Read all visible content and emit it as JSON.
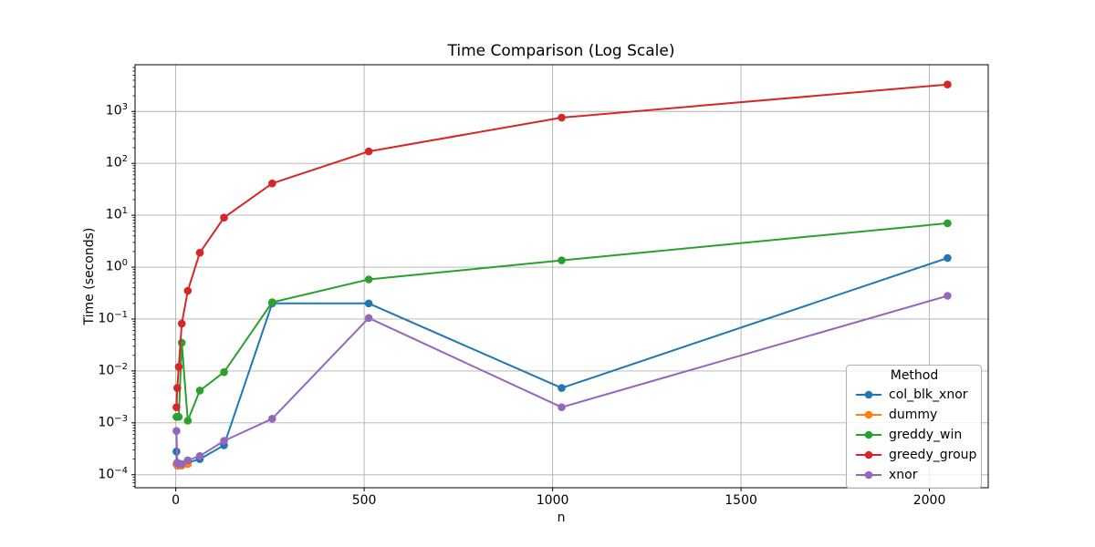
{
  "chart_data": {
    "type": "line",
    "title": "Time Comparison (Log Scale)",
    "xlabel": "n",
    "ylabel": "Time (seconds)",
    "grid": true,
    "xlim": [
      -108,
      2156
    ],
    "ylim_exponents": [
      -4.25,
      3.9
    ],
    "xticks": [
      0,
      500,
      1000,
      1500,
      2000
    ],
    "yticks_exponents": [
      -4,
      -3,
      -2,
      -1,
      0,
      1,
      2,
      3
    ],
    "legend": {
      "title": "Method",
      "position": "lower right"
    },
    "series": [
      {
        "name": "col_blk_xnor",
        "color": "#1f77b4",
        "x": [
          2,
          4,
          8,
          16,
          32,
          64,
          128,
          256,
          512,
          1024,
          2048
        ],
        "values": [
          0.00028,
          0.00017,
          0.00016,
          0.00016,
          0.00017,
          0.0002,
          0.00037,
          0.2,
          0.2,
          0.0047,
          1.5
        ]
      },
      {
        "name": "dummy",
        "color": "#ff7f0e",
        "x": [
          2,
          4,
          8,
          16,
          32
        ],
        "values": [
          0.00016,
          0.00015,
          0.00015,
          0.00015,
          0.00016
        ]
      },
      {
        "name": "greddy_win",
        "color": "#2ca02c",
        "x": [
          2,
          4,
          8,
          16,
          32,
          64,
          128,
          256,
          512,
          1024,
          2048
        ],
        "values": [
          0.0013,
          0.0013,
          0.0013,
          0.035,
          0.0011,
          0.0042,
          0.0095,
          0.21,
          0.58,
          1.35,
          7.0
        ]
      },
      {
        "name": "greedy_group",
        "color": "#d62728",
        "x": [
          2,
          4,
          8,
          16,
          32,
          64,
          128,
          256,
          512,
          1024,
          2048
        ],
        "values": [
          0.002,
          0.0047,
          0.012,
          0.082,
          0.35,
          1.9,
          9.0,
          41,
          170,
          760,
          3300
        ]
      },
      {
        "name": "xnor",
        "color": "#9467bd",
        "x": [
          2,
          4,
          8,
          16,
          32,
          64,
          128,
          256,
          512,
          1024,
          2048
        ],
        "values": [
          0.0007,
          0.00017,
          0.00016,
          0.00016,
          0.00019,
          0.00023,
          0.00045,
          0.0012,
          0.105,
          0.002,
          0.28
        ]
      }
    ]
  }
}
